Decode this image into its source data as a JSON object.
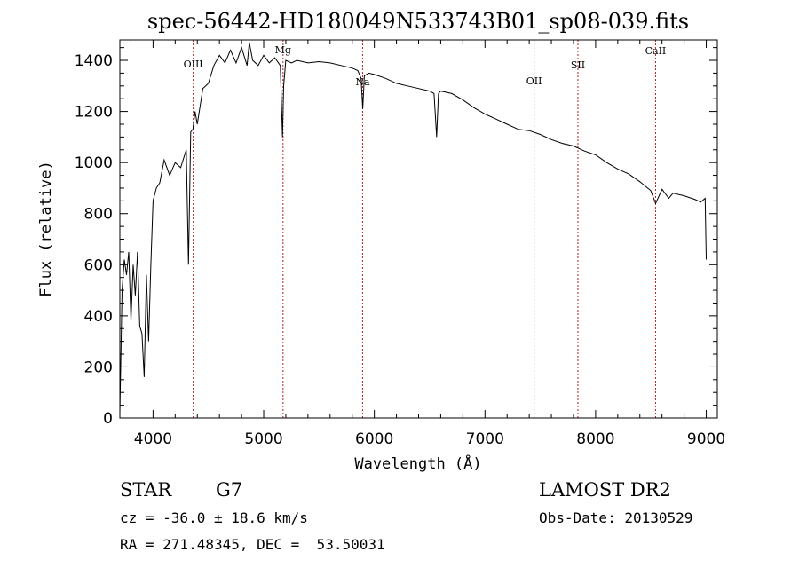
{
  "chart_data": {
    "type": "line",
    "title": "spec-56442-HD180049N533743B01_sp08-039.fits",
    "xlabel": "Wavelength (Å)",
    "ylabel": "Flux (relative)",
    "xlim": [
      3700,
      9100
    ],
    "ylim": [
      0,
      1480
    ],
    "xticks": [
      4000,
      5000,
      6000,
      7000,
      8000,
      9000
    ],
    "yticks": [
      0,
      200,
      400,
      600,
      800,
      1000,
      1200,
      1400
    ],
    "grid": false,
    "series": [
      {
        "x": [
          3700,
          3720,
          3740,
          3760,
          3780,
          3800,
          3820,
          3840,
          3860,
          3880,
          3900,
          3920,
          3940,
          3960,
          3980,
          4000,
          4030,
          4060,
          4100,
          4150,
          4200,
          4250,
          4300,
          4320,
          4340,
          4360,
          4380,
          4400,
          4450,
          4500,
          4550,
          4600,
          4650,
          4700,
          4750,
          4800,
          4850,
          4870,
          4900,
          4950,
          5000,
          5050,
          5100,
          5150,
          5170,
          5180,
          5200,
          5250,
          5300,
          5400,
          5500,
          5600,
          5700,
          5800,
          5850,
          5880,
          5895,
          5910,
          5950,
          6000,
          6100,
          6200,
          6300,
          6400,
          6500,
          6540,
          6563,
          6580,
          6600,
          6700,
          6800,
          6900,
          7000,
          7100,
          7200,
          7300,
          7400,
          7500,
          7600,
          7700,
          7800,
          7900,
          8000,
          8100,
          8200,
          8300,
          8400,
          8498,
          8542,
          8600,
          8662,
          8700,
          8800,
          8900,
          8950,
          8990,
          9000
        ],
        "y": [
          20,
          500,
          620,
          560,
          650,
          380,
          600,
          480,
          650,
          360,
          330,
          160,
          560,
          300,
          600,
          850,
          900,
          920,
          1010,
          950,
          1000,
          980,
          1050,
          600,
          1120,
          1130,
          1200,
          1150,
          1290,
          1310,
          1380,
          1420,
          1390,
          1440,
          1390,
          1450,
          1380,
          1470,
          1400,
          1380,
          1420,
          1390,
          1410,
          1380,
          1100,
          1300,
          1400,
          1390,
          1400,
          1390,
          1395,
          1390,
          1380,
          1370,
          1360,
          1330,
          1210,
          1340,
          1350,
          1345,
          1330,
          1310,
          1300,
          1290,
          1280,
          1270,
          1100,
          1270,
          1280,
          1270,
          1245,
          1215,
          1190,
          1170,
          1150,
          1130,
          1125,
          1110,
          1090,
          1075,
          1065,
          1045,
          1030,
          1000,
          975,
          955,
          925,
          890,
          840,
          895,
          860,
          880,
          870,
          855,
          845,
          860,
          620
        ]
      }
    ],
    "annotations": [
      {
        "label": "OIII",
        "x": 4363
      },
      {
        "label": "Mg",
        "x": 5175
      },
      {
        "label": "Na",
        "x": 5894
      },
      {
        "label": "OII",
        "x": 7444
      },
      {
        "label": "SII",
        "x": 7840
      },
      {
        "label": "CaII",
        "x": 8542
      }
    ]
  },
  "info": {
    "object_class": "STAR",
    "subclass": "G7",
    "survey": "LAMOST DR2",
    "redshift_line": "cz = -36.0 ± 18.6 km/s",
    "obs_date_line": "Obs-Date: 20130529",
    "coords_line": "RA = 271.48345, DEC =  53.50031"
  },
  "colors": {
    "spectrum": "#000000",
    "line_markers": "#b22222"
  }
}
